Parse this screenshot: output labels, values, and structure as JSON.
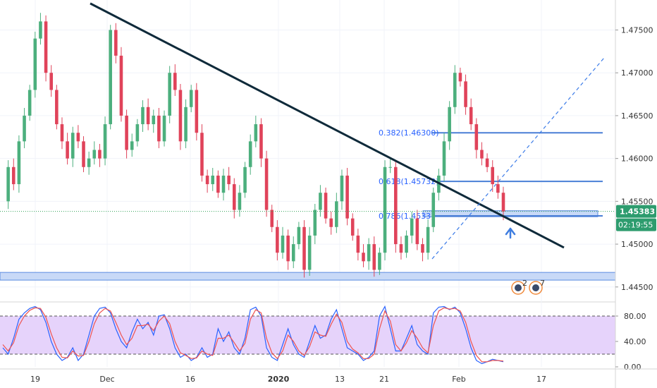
{
  "colors": {
    "up": "#4caf7d",
    "down": "#e0435a",
    "trendline": "#0f2a3a",
    "fib": "#4a7fd6",
    "zone_fill": "#c8d9f7",
    "zone_stroke": "#5a8be0",
    "dashed_channel": "#3b7be8",
    "price_label_bg": "#2d9c6e",
    "stoch_k": "#2962ff",
    "stoch_d": "#ef5350",
    "stoch_band": "#e6d3fb",
    "current_line": "#33a35a",
    "arrow": "#3f7de0"
  },
  "chart_data": [
    {
      "type": "candlestick",
      "title": "",
      "x_ticks": [
        "19",
        "Dec",
        "16",
        "2020",
        "13",
        "21",
        "Feb",
        "17"
      ],
      "y_ticks": [
        "1.47500",
        "1.47000",
        "1.46500",
        "1.46000",
        "1.45500",
        "1.45000",
        "1.44500"
      ],
      "ylim": [
        1.4435,
        1.4785
      ],
      "last_price": "1.45383",
      "countdown": "02:19:55",
      "fib_levels": [
        {
          "ratio": "0.382",
          "price": 1.463,
          "label": "0.382(1.46300)"
        },
        {
          "ratio": "0.618",
          "price": 1.45732,
          "label": "0.618(1.45732)"
        },
        {
          "ratio": "0.786",
          "price": 1.4533,
          "label": "0.786(1.4533)"
        }
      ],
      "support_zones": [
        {
          "from": 1.4532,
          "to": 1.4539
        },
        {
          "from": 1.4458,
          "to": 1.4467
        }
      ],
      "trendline": {
        "from_price": 1.4781,
        "to_price": 1.4496
      },
      "event_badges": [
        "2",
        "7"
      ],
      "ohlc_path": [
        1.455,
        1.459,
        1.457,
        1.462,
        1.465,
        1.468,
        1.474,
        1.476,
        1.47,
        1.468,
        1.464,
        1.462,
        1.46,
        1.463,
        1.462,
        1.459,
        1.46,
        1.461,
        1.46,
        1.464,
        1.475,
        1.472,
        1.465,
        1.461,
        1.462,
        1.464,
        1.466,
        1.464,
        1.465,
        1.462,
        1.465,
        1.47,
        1.468,
        1.462,
        1.466,
        1.468,
        1.463,
        1.458,
        1.457,
        1.458,
        1.456,
        1.458,
        1.457,
        1.454,
        1.456,
        1.459,
        1.462,
        1.464,
        1.46,
        1.454,
        1.452,
        1.449,
        1.451,
        1.448,
        1.45,
        1.452,
        1.447,
        1.451,
        1.454,
        1.456,
        1.453,
        1.452,
        1.455,
        1.458,
        1.453,
        1.451,
        1.449,
        1.448,
        1.45,
        1.447,
        1.449,
        1.459,
        1.459,
        1.45,
        1.449,
        1.451,
        1.453,
        1.45,
        1.449,
        1.452,
        1.456,
        1.458,
        1.462,
        1.466,
        1.47,
        1.469,
        1.466,
        1.464,
        1.461,
        1.46,
        1.459,
        1.457,
        1.456,
        1.4538
      ]
    },
    {
      "type": "line",
      "title": "",
      "y_ticks": [
        "80.00",
        "40.00",
        "0.00"
      ],
      "ylim": [
        0,
        100
      ],
      "levels": [
        80,
        20
      ],
      "series": [
        {
          "values": [
            30,
            20,
            45,
            75,
            85,
            92,
            95,
            90,
            70,
            40,
            20,
            10,
            15,
            30,
            10,
            20,
            50,
            80,
            92,
            94,
            85,
            60,
            40,
            30,
            55,
            75,
            60,
            70,
            50,
            80,
            82,
            60,
            30,
            15,
            20,
            10,
            15,
            30,
            15,
            20,
            60,
            40,
            55,
            30,
            20,
            45,
            90,
            94,
            80,
            30,
            15,
            10,
            35,
            60,
            35,
            20,
            15,
            40,
            65,
            45,
            50,
            75,
            90,
            60,
            30,
            25,
            20,
            10,
            15,
            25,
            80,
            95,
            60,
            25,
            25,
            45,
            65,
            35,
            25,
            20,
            85,
            94,
            95,
            90,
            94,
            85,
            60,
            30,
            10,
            5,
            8,
            12,
            10,
            8
          ]
        },
        {
          "values": [
            35,
            25,
            38,
            65,
            80,
            89,
            93,
            92,
            78,
            52,
            30,
            15,
            14,
            25,
            17,
            18,
            40,
            68,
            85,
            92,
            88,
            70,
            50,
            35,
            45,
            65,
            65,
            67,
            57,
            72,
            80,
            68,
            40,
            22,
            18,
            13,
            14,
            25,
            20,
            18,
            45,
            45,
            50,
            38,
            25,
            37,
            75,
            90,
            85,
            45,
            22,
            13,
            25,
            50,
            40,
            25,
            18,
            32,
            55,
            50,
            48,
            67,
            83,
            70,
            40,
            28,
            22,
            13,
            13,
            20,
            60,
            88,
            72,
            35,
            25,
            38,
            57,
            45,
            30,
            22,
            65,
            88,
            93,
            91,
            92,
            88,
            70,
            40,
            18,
            8,
            8,
            10,
            10,
            9
          ]
        }
      ]
    }
  ]
}
